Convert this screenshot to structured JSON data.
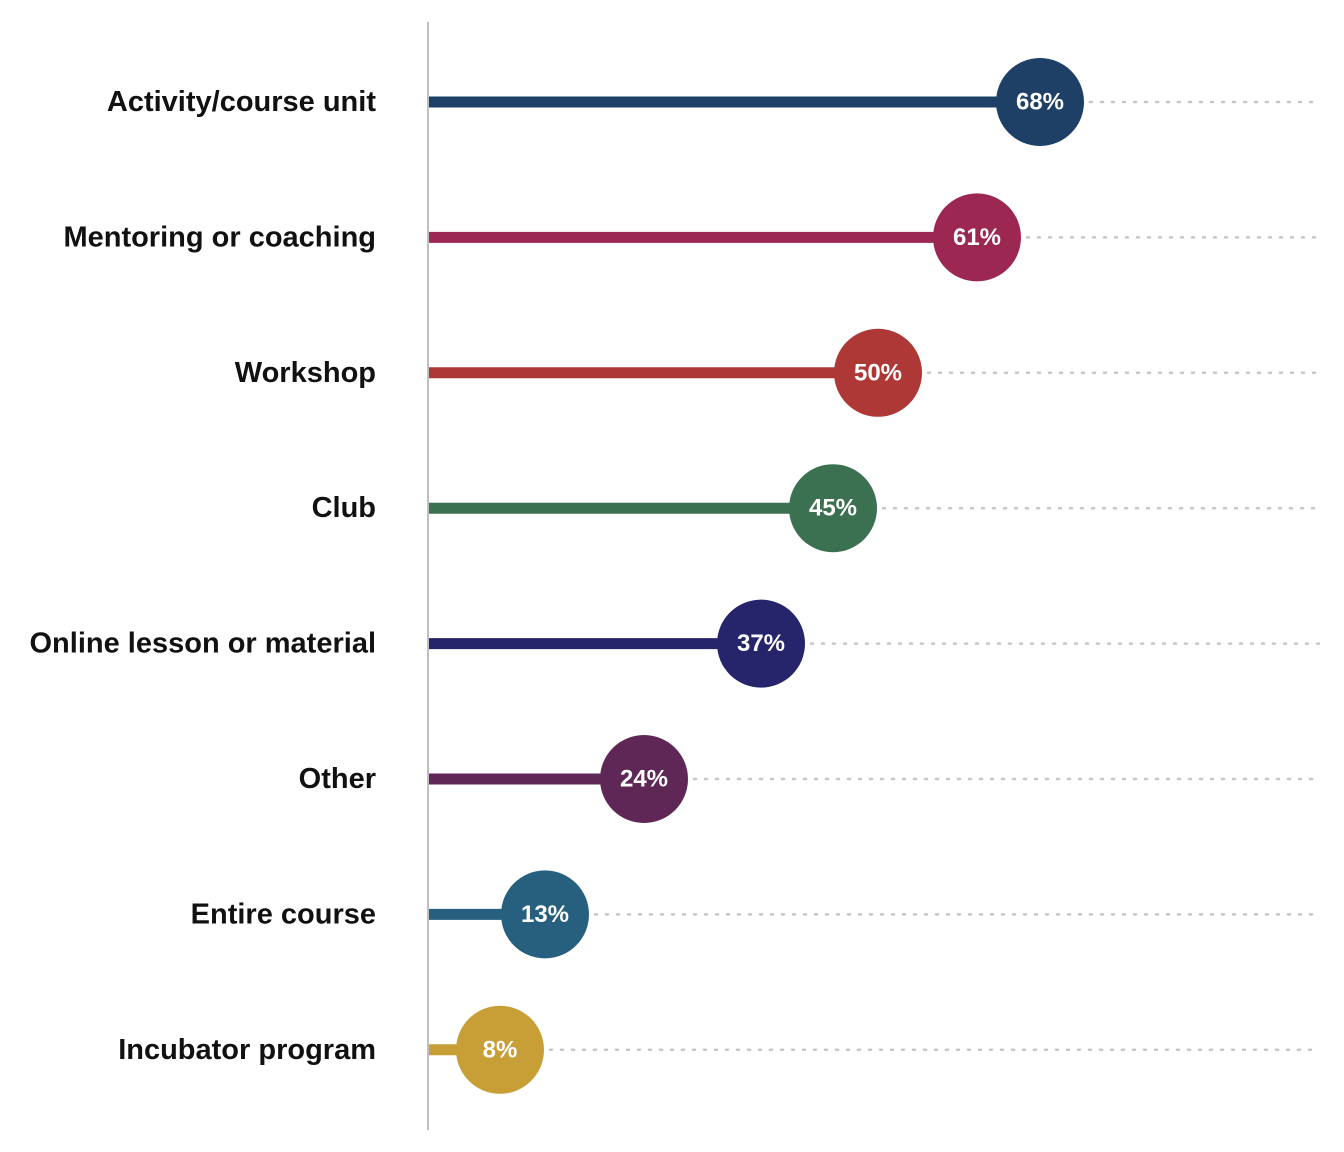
{
  "chart_data": {
    "type": "bar",
    "subtype": "lollipop",
    "orientation": "horizontal",
    "categories": [
      "Activity/course unit",
      "Mentoring or coaching",
      "Workshop",
      "Club",
      "Online lesson or material",
      "Other",
      "Entire course",
      "Incubator program"
    ],
    "values": [
      68,
      61,
      50,
      45,
      37,
      24,
      13,
      8
    ],
    "value_labels": [
      "68%",
      "61%",
      "50%",
      "45%",
      "37%",
      "24%",
      "13%",
      "8%"
    ],
    "colors": [
      "#1e3f66",
      "#9b2752",
      "#ad3835",
      "#3b7050",
      "#26246a",
      "#5e2756",
      "#27607e",
      "#c89e37"
    ],
    "unit": "%",
    "xlim": [
      0,
      100
    ],
    "title": "",
    "xlabel": "",
    "ylabel": "",
    "grid": false,
    "legend": "none",
    "reference_lines": "dotted",
    "reference_line_color": "#c8c8c8",
    "axis_color": "#bfbfbf"
  }
}
